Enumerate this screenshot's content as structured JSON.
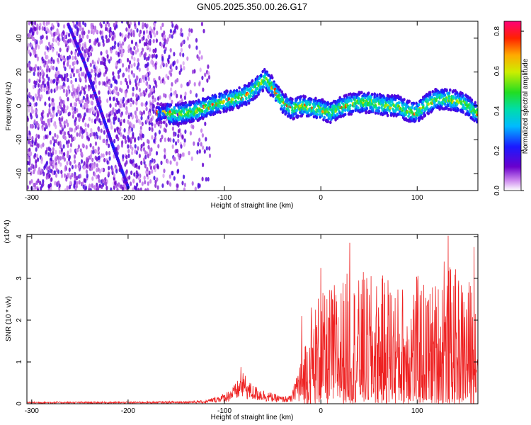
{
  "figure": {
    "title": "GN05.2025.350.00.26.G17"
  },
  "chart_data": [
    {
      "type": "heatmap",
      "xlabel": "Height of straight line (km)",
      "ylabel": "Frequency (Hz)",
      "xlim": [
        -305,
        163
      ],
      "ylim": [
        -50,
        50
      ],
      "xticks": [
        -300,
        -200,
        -100,
        0,
        100
      ],
      "yticks": [
        -40,
        -20,
        0,
        20,
        40
      ],
      "xtick_labels": [
        "-300",
        "-200",
        "-100",
        "0",
        "100"
      ],
      "ytick_labels": [
        "-40",
        "-20",
        "0",
        "20",
        "40"
      ],
      "colorbar": {
        "label": "Normalized spectral amplitude",
        "range": [
          0,
          0.85
        ],
        "ticks": [
          0.0,
          0.2,
          0.4,
          0.6,
          0.8
        ],
        "tick_labels": [
          "0.0",
          "0.2",
          "0.4",
          "0.6",
          "0.8"
        ],
        "colormap": "rainbow (violet-blue-cyan-green-yellow-orange-red-magenta)"
      },
      "ridge": {
        "description": "main frequency ridge vs height",
        "x": [
          -170,
          -150,
          -130,
          -110,
          -90,
          -75,
          -65,
          -58,
          -50,
          -40,
          -30,
          -20,
          -10,
          0,
          10,
          20,
          30,
          40,
          50,
          60,
          70,
          80,
          90,
          100,
          110,
          120,
          130,
          140,
          150,
          163
        ],
        "y": [
          -4,
          -5,
          -3,
          1,
          4,
          7,
          12,
          16,
          11,
          2,
          -2,
          0,
          -1,
          -2,
          -4,
          -1,
          1,
          2,
          2,
          1,
          0,
          0,
          -3,
          -4,
          1,
          4,
          4,
          3,
          1,
          -5
        ]
      },
      "diagonal_trace": {
        "description": "oblique linear feature in the noisy region",
        "x": [
          -262,
          -245,
          -230,
          -215,
          -200
        ],
        "y": [
          48,
          25,
          0,
          -25,
          -48
        ]
      },
      "grid": false
    },
    {
      "type": "line",
      "xlabel": "Height of straight line (km)",
      "ylabel": "SNR (10 * v/v)",
      "scale_label": "(x10^4)",
      "xlim": [
        -305,
        163
      ],
      "ylim": [
        0,
        4.05
      ],
      "xticks": [
        -300,
        -200,
        -100,
        0,
        100
      ],
      "yticks": [
        0,
        1,
        2,
        3,
        4
      ],
      "xtick_labels": [
        "-300",
        "-200",
        "-100",
        "0",
        "100"
      ],
      "ytick_labels": [
        "0",
        "1",
        "2",
        "3",
        "4"
      ],
      "color": "#ee2222",
      "series": [
        {
          "envelope_x": [
            -305,
            -250,
            -200,
            -150,
            -120,
            -100,
            -90,
            -85,
            -80,
            -75,
            -70,
            -60,
            -50,
            -40,
            -30,
            -25,
            -20,
            -15,
            -10,
            -5,
            0,
            5,
            10,
            20,
            30,
            40,
            50,
            60,
            70,
            80,
            90,
            100,
            110,
            120,
            130,
            140,
            150,
            163
          ],
          "envelope_y": [
            0.05,
            0.05,
            0.05,
            0.06,
            0.08,
            0.25,
            0.45,
            0.6,
            0.75,
            0.55,
            0.45,
            0.35,
            0.25,
            0.18,
            0.2,
            0.8,
            1.2,
            1.6,
            2.0,
            2.2,
            2.5,
            2.2,
            2.5,
            2.6,
            2.8,
            2.6,
            2.7,
            2.6,
            2.8,
            2.5,
            2.6,
            2.7,
            2.5,
            2.6,
            3.0,
            2.8,
            2.6,
            2.7
          ],
          "peaks_x": [
            -83,
            -20,
            -10,
            0,
            30,
            44,
            128,
            132,
            159
          ],
          "peaks_y": [
            0.88,
            2.1,
            2.3,
            3.25,
            3.85,
            3.15,
            3.4,
            4.02,
            3.75
          ]
        }
      ]
    }
  ]
}
